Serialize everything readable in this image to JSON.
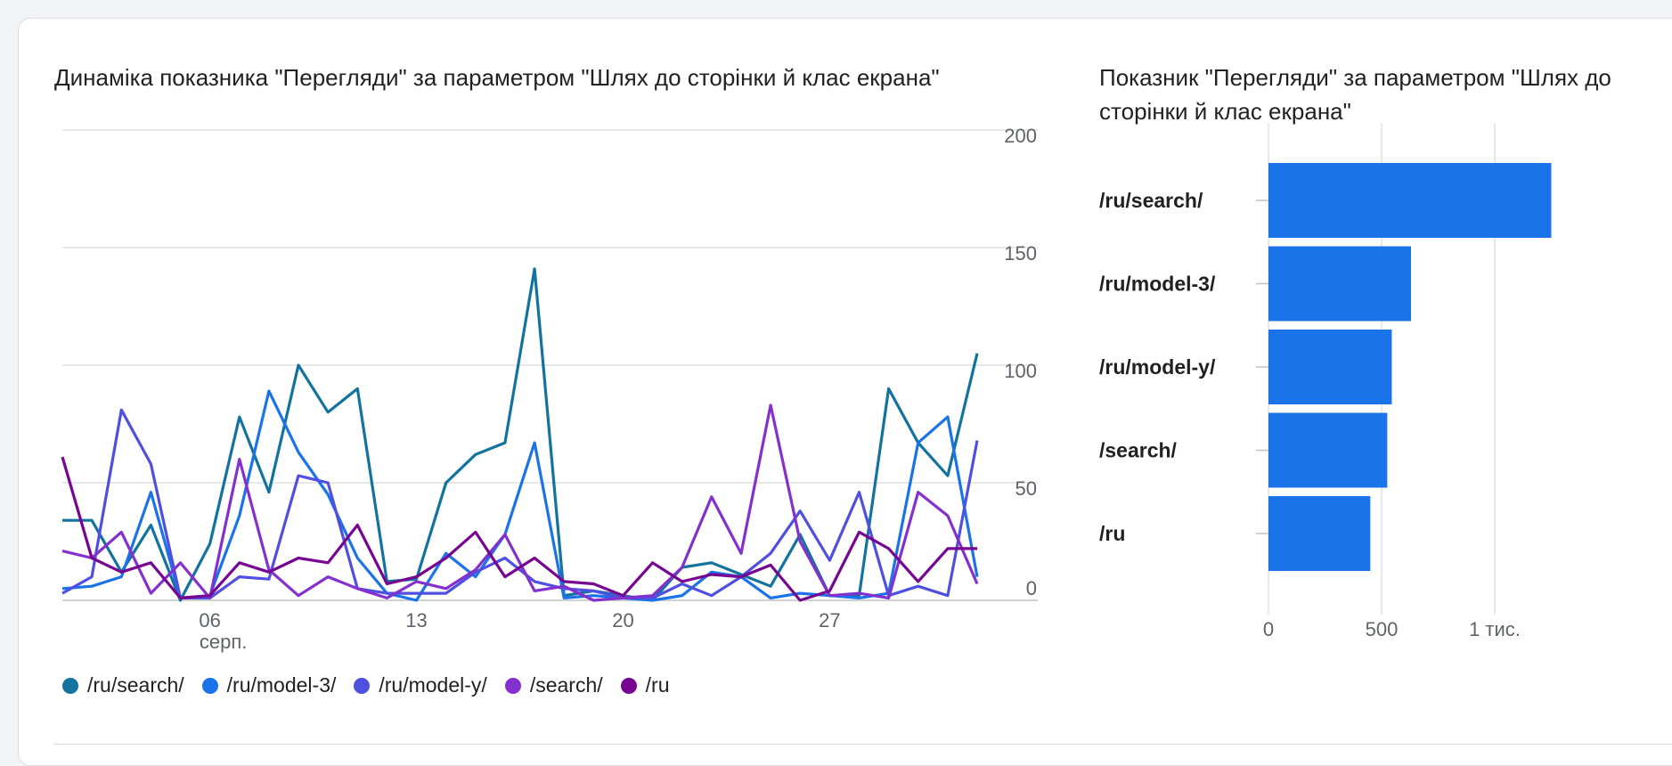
{
  "chart_data": [
    {
      "type": "line",
      "title": "Динаміка показника \"Перегляди\" за параметром \"Шлях до сторінки й клас екрана\"",
      "x_start_day": 1,
      "x_ticks": [
        {
          "day": 6,
          "label": "06",
          "sublabel": "серп."
        },
        {
          "day": 13,
          "label": "13",
          "sublabel": ""
        },
        {
          "day": 20,
          "label": "20",
          "sublabel": ""
        },
        {
          "day": 27,
          "label": "27",
          "sublabel": ""
        }
      ],
      "y_ticks": [
        "0",
        "50",
        "100",
        "150",
        "200"
      ],
      "ylim": [
        0,
        200
      ],
      "grid": true,
      "legend_position": "bottom-left",
      "series": [
        {
          "name": "/ru/search/",
          "color": "#12739f",
          "values": [
            34,
            34,
            12,
            32,
            0,
            24,
            78,
            46,
            100,
            80,
            90,
            8,
            9,
            50,
            62,
            67,
            141,
            2,
            4,
            2,
            0,
            14,
            16,
            11,
            6,
            28,
            2,
            2,
            90,
            67,
            53,
            105
          ]
        },
        {
          "name": "/ru/model-3/",
          "color": "#1a73e8",
          "values": [
            5,
            6,
            10,
            46,
            1,
            2,
            36,
            89,
            63,
            45,
            18,
            3,
            0,
            20,
            10,
            28,
            67,
            1,
            2,
            1,
            0,
            2,
            12,
            10,
            1,
            3,
            2,
            1,
            3,
            67,
            78,
            10
          ]
        },
        {
          "name": "/ru/model-y/",
          "color": "#4f4fe0",
          "values": [
            3,
            10,
            81,
            58,
            1,
            1,
            10,
            9,
            53,
            50,
            5,
            3,
            3,
            3,
            12,
            18,
            8,
            5,
            4,
            1,
            1,
            7,
            2,
            10,
            20,
            38,
            17,
            46,
            2,
            6,
            2,
            68
          ]
        },
        {
          "name": "/search/",
          "color": "#8430ce",
          "values": [
            21,
            18,
            29,
            3,
            16,
            1,
            60,
            13,
            2,
            10,
            5,
            1,
            8,
            5,
            13,
            28,
            4,
            6,
            0,
            1,
            2,
            14,
            44,
            20,
            83,
            25,
            2,
            3,
            1,
            46,
            36,
            7
          ]
        },
        {
          "name": "/ru",
          "color": "#780592",
          "values": [
            61,
            18,
            12,
            16,
            1,
            2,
            16,
            12,
            18,
            16,
            32,
            7,
            10,
            18,
            29,
            10,
            18,
            8,
            7,
            2,
            16,
            8,
            11,
            10,
            15,
            0,
            4,
            29,
            22,
            8,
            22,
            22
          ]
        }
      ]
    },
    {
      "type": "bar",
      "orientation": "horizontal",
      "title": "Показник \"Перегляди\" за параметром \"Шлях до сторінки й клас екрана\"",
      "categories": [
        "/ru/search/",
        "/ru/model-3/",
        "/ru/model-y/",
        "/search/",
        "/ru"
      ],
      "values": [
        1250,
        630,
        545,
        525,
        450
      ],
      "xlim": [
        0,
        1500
      ],
      "x_ticks": [
        {
          "value": 0,
          "label": "0"
        },
        {
          "value": 500,
          "label": "500"
        },
        {
          "value": 1000,
          "label": "1 тис."
        }
      ],
      "bar_color": "#1a73e8",
      "grid": true
    }
  ]
}
